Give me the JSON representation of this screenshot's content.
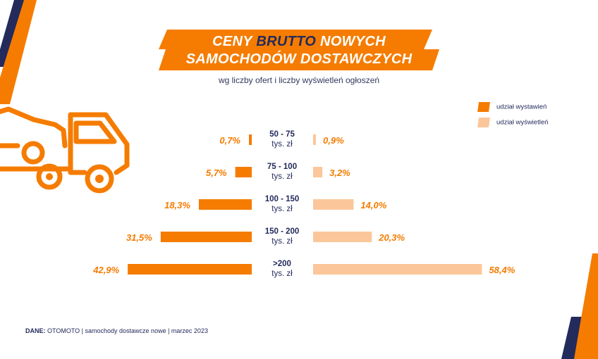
{
  "title": {
    "line1_pre": "CENY ",
    "line1_highlight": "BRUTTO",
    "line1_post": " NOWYCH",
    "line2": "SAMOCHODÓW DOSTAWCZYCH"
  },
  "subtitle": "wg liczby ofert i liczby wyświetleń ogłoszeń",
  "colors": {
    "orange": "#f57c00",
    "peach": "#fbc79a",
    "navy": "#232a5c"
  },
  "chart_data": {
    "type": "bar",
    "categories": [
      [
        "50 - 75",
        "tys. zł"
      ],
      [
        "75 - 100",
        "tys. zł"
      ],
      [
        "100 - 150",
        "tys. zł"
      ],
      [
        "150 - 200",
        "tys. zł"
      ],
      [
        ">200",
        "tys. zł"
      ]
    ],
    "series": [
      {
        "name": "udział wystawień",
        "values": [
          0.7,
          5.7,
          18.3,
          31.5,
          42.9
        ],
        "labels": [
          "0,7%",
          "5,7%",
          "18,3%",
          "31,5%",
          "42,9%"
        ],
        "color": "#f57c00"
      },
      {
        "name": "udział wyświetleń",
        "values": [
          0.9,
          3.2,
          14.0,
          20.3,
          58.4
        ],
        "labels": [
          "0,9%",
          "3,2%",
          "14,0%",
          "20,3%",
          "58,4%"
        ],
        "color": "#fbc79a"
      }
    ],
    "legend_position": "top-right",
    "grid": false
  },
  "footer": {
    "source_label": "DANE:",
    "source": " OTOMOTO",
    "sep": "  |  ",
    "desc": "samochody dostawcze nowe",
    "date": "marzec 2023"
  }
}
